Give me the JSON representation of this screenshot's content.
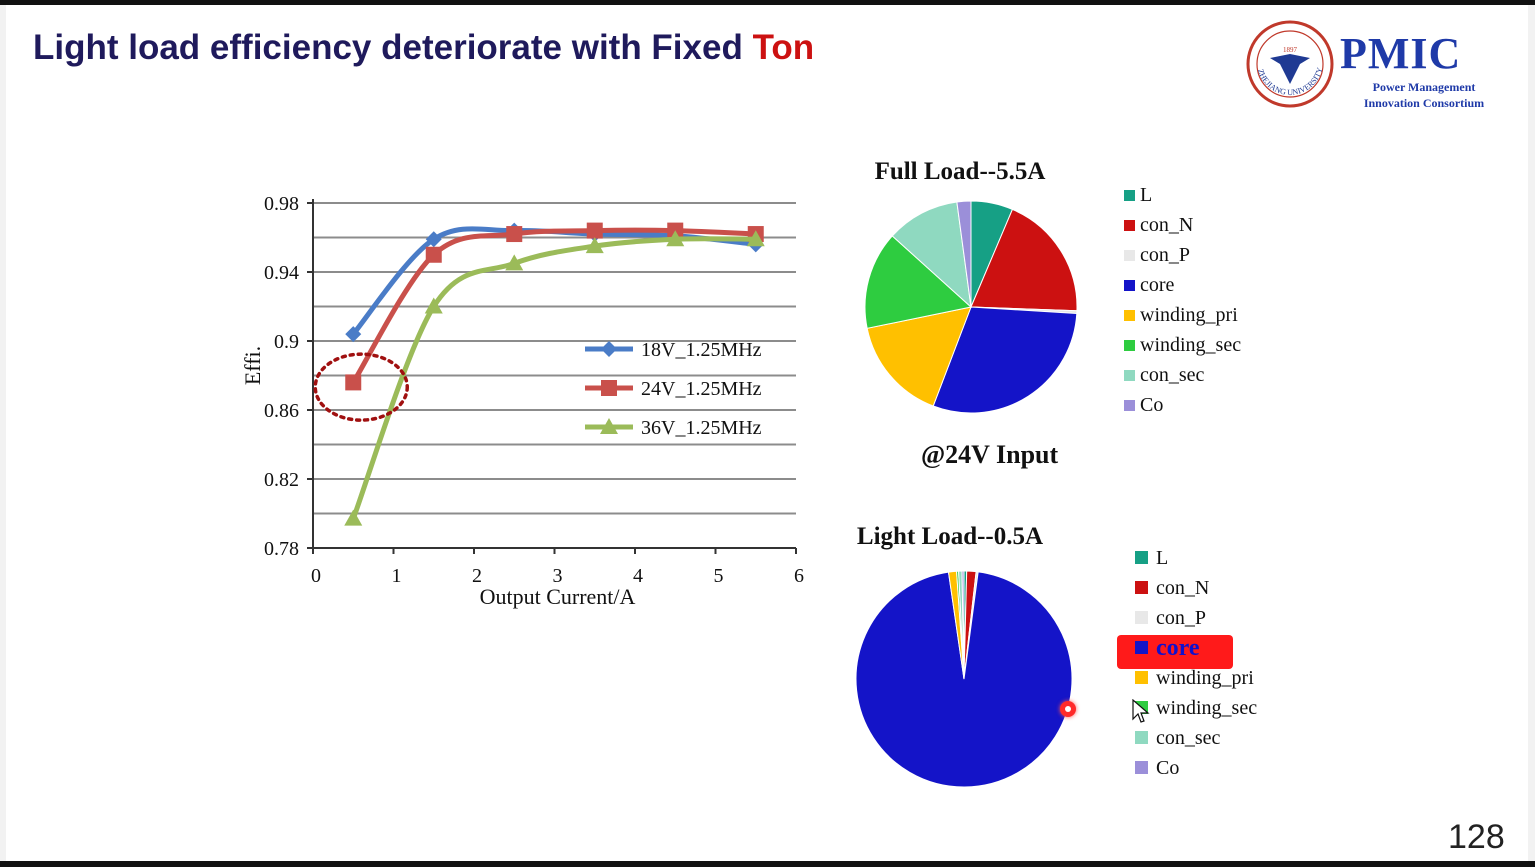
{
  "slide": {
    "title_main": "Light load efficiency deteriorate with Fixed ",
    "title_accent": "Ton",
    "page_number": "128",
    "input_condition": "@24V Input",
    "logo": {
      "brand": "PMIC",
      "line1": "Power Management",
      "line2": "Innovation Consortium",
      "seal_text": "ZHEJIANG UNIVERSITY",
      "seal_year": "1897"
    }
  },
  "colors": {
    "title": "#1f1a5c",
    "accent": "#cc1111",
    "series_18v": "#4a7cc7",
    "series_24v": "#c9504b",
    "series_36v": "#9bbb59",
    "L": "#16a085",
    "con_N": "#cc1111",
    "con_P": "#e8e8e8",
    "core": "#1414c8",
    "winding_pri": "#ffc000",
    "winding_sec": "#2ecc40",
    "con_sec": "#8fd9c0",
    "Co": "#9b8fd9"
  },
  "icons": {
    "pointer": "laser-pointer-icon",
    "cursor": "mouse-cursor-icon"
  },
  "chart_data": [
    {
      "type": "line",
      "xlabel": "Output Current/A",
      "ylabel": "Effi.",
      "xlim": [
        0,
        6
      ],
      "ylim": [
        0.78,
        0.98
      ],
      "x_ticks": [
        "0",
        "1",
        "2",
        "3",
        "4",
        "5",
        "6"
      ],
      "y_ticks": [
        "0.78",
        "0.82",
        "0.86",
        "0.9",
        "0.94",
        "0.98"
      ],
      "grid": true,
      "legend_position": "center-right",
      "x": [
        0.5,
        1.5,
        2.5,
        3.5,
        4.5,
        5.5
      ],
      "series": [
        {
          "name": "18V_1.25MHz",
          "values": [
            0.904,
            0.959,
            0.964,
            0.962,
            0.961,
            0.956
          ],
          "marker": "diamond"
        },
        {
          "name": "24V_1.25MHz",
          "values": [
            0.876,
            0.95,
            0.962,
            0.964,
            0.964,
            0.962
          ],
          "marker": "square"
        },
        {
          "name": "36V_1.25MHz",
          "values": [
            0.797,
            0.92,
            0.945,
            0.955,
            0.959,
            0.959
          ],
          "marker": "triangle"
        }
      ],
      "annotations": [
        {
          "type": "dotted-ellipse",
          "x": 0.5,
          "y": 0.875
        }
      ]
    },
    {
      "type": "pie",
      "title": "Full Load--5.5A",
      "legend_position": "right",
      "labels": [
        "L",
        "con_N",
        "con_P",
        "core",
        "winding_pri",
        "winding_sec",
        "con_sec",
        "Co"
      ],
      "values": [
        6,
        18,
        0.4,
        28,
        15,
        14,
        10.5,
        2
      ]
    },
    {
      "type": "pie",
      "title": "Light Load--0.5A",
      "legend_position": "right",
      "labels": [
        "L",
        "con_N",
        "con_P",
        "core",
        "winding_pri",
        "winding_sec",
        "con_sec",
        "Co"
      ],
      "values": [
        0.4,
        1.4,
        0.3,
        95.9,
        1.2,
        0.3,
        0.5,
        0.3
      ],
      "highlighted_label": "core"
    }
  ]
}
